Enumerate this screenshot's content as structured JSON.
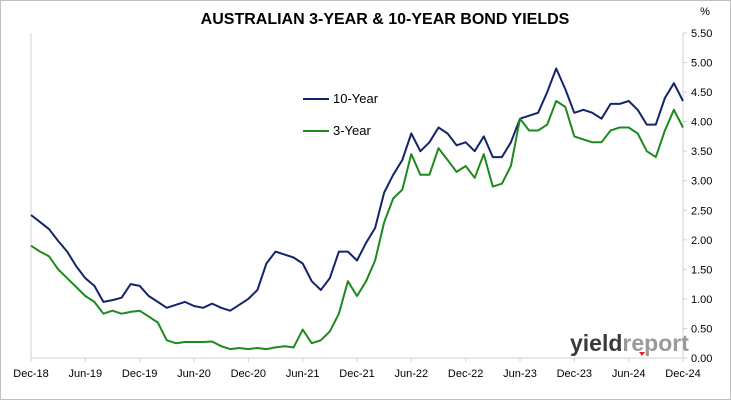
{
  "chart_data": {
    "type": "line",
    "title": "AUSTRALIAN 3-YEAR & 10-YEAR BOND YIELDS",
    "y_unit": "%",
    "ylim": [
      0,
      5.5
    ],
    "xlim": [
      "2018-12",
      "2024-12"
    ],
    "y_ticks": [
      "0.00",
      "0.50",
      "1.00",
      "1.50",
      "2.00",
      "2.50",
      "3.00",
      "3.50",
      "4.00",
      "4.50",
      "5.00",
      "5.50"
    ],
    "x_ticks": [
      "Dec-18",
      "Jun-19",
      "Dec-19",
      "Jun-20",
      "Dec-20",
      "Jun-21",
      "Dec-21",
      "Jun-22",
      "Dec-22",
      "Jun-23",
      "Dec-23",
      "Jun-24",
      "Dec-24"
    ],
    "grid": false,
    "legend_position": "upper-left-center",
    "series": [
      {
        "name": "10-Year",
        "color": "#13246b",
        "points": [
          [
            "2018-12",
            2.42
          ],
          [
            "2019-01",
            2.3
          ],
          [
            "2019-02",
            2.18
          ],
          [
            "2019-03",
            1.98
          ],
          [
            "2019-04",
            1.8
          ],
          [
            "2019-05",
            1.55
          ],
          [
            "2019-06",
            1.35
          ],
          [
            "2019-07",
            1.22
          ],
          [
            "2019-08",
            0.95
          ],
          [
            "2019-09",
            0.98
          ],
          [
            "2019-10",
            1.02
          ],
          [
            "2019-11",
            1.25
          ],
          [
            "2019-12",
            1.22
          ],
          [
            "2020-01",
            1.05
          ],
          [
            "2020-02",
            0.95
          ],
          [
            "2020-03",
            0.85
          ],
          [
            "2020-04",
            0.9
          ],
          [
            "2020-05",
            0.95
          ],
          [
            "2020-06",
            0.88
          ],
          [
            "2020-07",
            0.85
          ],
          [
            "2020-08",
            0.92
          ],
          [
            "2020-09",
            0.85
          ],
          [
            "2020-10",
            0.8
          ],
          [
            "2020-11",
            0.9
          ],
          [
            "2020-12",
            1.0
          ],
          [
            "2021-01",
            1.15
          ],
          [
            "2021-02",
            1.6
          ],
          [
            "2021-03",
            1.8
          ],
          [
            "2021-04",
            1.75
          ],
          [
            "2021-05",
            1.7
          ],
          [
            "2021-06",
            1.6
          ],
          [
            "2021-07",
            1.3
          ],
          [
            "2021-08",
            1.15
          ],
          [
            "2021-09",
            1.35
          ],
          [
            "2021-10",
            1.8
          ],
          [
            "2021-11",
            1.8
          ],
          [
            "2021-12",
            1.65
          ],
          [
            "2022-01",
            1.95
          ],
          [
            "2022-02",
            2.2
          ],
          [
            "2022-03",
            2.8
          ],
          [
            "2022-04",
            3.1
          ],
          [
            "2022-05",
            3.35
          ],
          [
            "2022-06",
            3.8
          ],
          [
            "2022-07",
            3.5
          ],
          [
            "2022-08",
            3.65
          ],
          [
            "2022-09",
            3.9
          ],
          [
            "2022-10",
            3.8
          ],
          [
            "2022-11",
            3.6
          ],
          [
            "2022-12",
            3.65
          ],
          [
            "2023-01",
            3.5
          ],
          [
            "2023-02",
            3.75
          ],
          [
            "2023-03",
            3.4
          ],
          [
            "2023-04",
            3.4
          ],
          [
            "2023-05",
            3.65
          ],
          [
            "2023-06",
            4.05
          ],
          [
            "2023-07",
            4.1
          ],
          [
            "2023-08",
            4.15
          ],
          [
            "2023-09",
            4.5
          ],
          [
            "2023-10",
            4.9
          ],
          [
            "2023-11",
            4.55
          ],
          [
            "2023-12",
            4.15
          ],
          [
            "2024-01",
            4.2
          ],
          [
            "2024-02",
            4.15
          ],
          [
            "2024-03",
            4.05
          ],
          [
            "2024-04",
            4.3
          ],
          [
            "2024-05",
            4.3
          ],
          [
            "2024-06",
            4.35
          ],
          [
            "2024-07",
            4.2
          ],
          [
            "2024-08",
            3.95
          ],
          [
            "2024-09",
            3.95
          ],
          [
            "2024-10",
            4.4
          ],
          [
            "2024-11",
            4.65
          ],
          [
            "2024-12",
            4.35
          ]
        ]
      },
      {
        "name": "3-Year",
        "color": "#1e8a1e",
        "points": [
          [
            "2018-12",
            1.9
          ],
          [
            "2019-01",
            1.8
          ],
          [
            "2019-02",
            1.72
          ],
          [
            "2019-03",
            1.5
          ],
          [
            "2019-04",
            1.35
          ],
          [
            "2019-05",
            1.2
          ],
          [
            "2019-06",
            1.05
          ],
          [
            "2019-07",
            0.95
          ],
          [
            "2019-08",
            0.75
          ],
          [
            "2019-09",
            0.8
          ],
          [
            "2019-10",
            0.75
          ],
          [
            "2019-11",
            0.78
          ],
          [
            "2019-12",
            0.8
          ],
          [
            "2020-01",
            0.7
          ],
          [
            "2020-02",
            0.6
          ],
          [
            "2020-03",
            0.3
          ],
          [
            "2020-04",
            0.25
          ],
          [
            "2020-05",
            0.27
          ],
          [
            "2020-06",
            0.27
          ],
          [
            "2020-07",
            0.27
          ],
          [
            "2020-08",
            0.28
          ],
          [
            "2020-09",
            0.2
          ],
          [
            "2020-10",
            0.15
          ],
          [
            "2020-11",
            0.17
          ],
          [
            "2020-12",
            0.15
          ],
          [
            "2021-01",
            0.17
          ],
          [
            "2021-02",
            0.15
          ],
          [
            "2021-03",
            0.18
          ],
          [
            "2021-04",
            0.2
          ],
          [
            "2021-05",
            0.18
          ],
          [
            "2021-06",
            0.48
          ],
          [
            "2021-07",
            0.25
          ],
          [
            "2021-08",
            0.3
          ],
          [
            "2021-09",
            0.45
          ],
          [
            "2021-10",
            0.75
          ],
          [
            "2021-11",
            1.3
          ],
          [
            "2021-12",
            1.05
          ],
          [
            "2022-01",
            1.3
          ],
          [
            "2022-02",
            1.65
          ],
          [
            "2022-03",
            2.3
          ],
          [
            "2022-04",
            2.7
          ],
          [
            "2022-05",
            2.85
          ],
          [
            "2022-06",
            3.45
          ],
          [
            "2022-07",
            3.1
          ],
          [
            "2022-08",
            3.1
          ],
          [
            "2022-09",
            3.55
          ],
          [
            "2022-10",
            3.35
          ],
          [
            "2022-11",
            3.15
          ],
          [
            "2022-12",
            3.25
          ],
          [
            "2023-01",
            3.05
          ],
          [
            "2023-02",
            3.45
          ],
          [
            "2023-03",
            2.9
          ],
          [
            "2023-04",
            2.95
          ],
          [
            "2023-05",
            3.25
          ],
          [
            "2023-06",
            4.05
          ],
          [
            "2023-07",
            3.85
          ],
          [
            "2023-08",
            3.85
          ],
          [
            "2023-09",
            3.95
          ],
          [
            "2023-10",
            4.35
          ],
          [
            "2023-11",
            4.25
          ],
          [
            "2023-12",
            3.75
          ],
          [
            "2024-01",
            3.7
          ],
          [
            "2024-02",
            3.65
          ],
          [
            "2024-03",
            3.65
          ],
          [
            "2024-04",
            3.85
          ],
          [
            "2024-05",
            3.9
          ],
          [
            "2024-06",
            3.9
          ],
          [
            "2024-07",
            3.8
          ],
          [
            "2024-08",
            3.5
          ],
          [
            "2024-09",
            3.4
          ],
          [
            "2024-10",
            3.85
          ],
          [
            "2024-11",
            4.2
          ],
          [
            "2024-12",
            3.9
          ]
        ]
      }
    ]
  },
  "logo": {
    "text_dark": "yield",
    "text_light": "report"
  }
}
